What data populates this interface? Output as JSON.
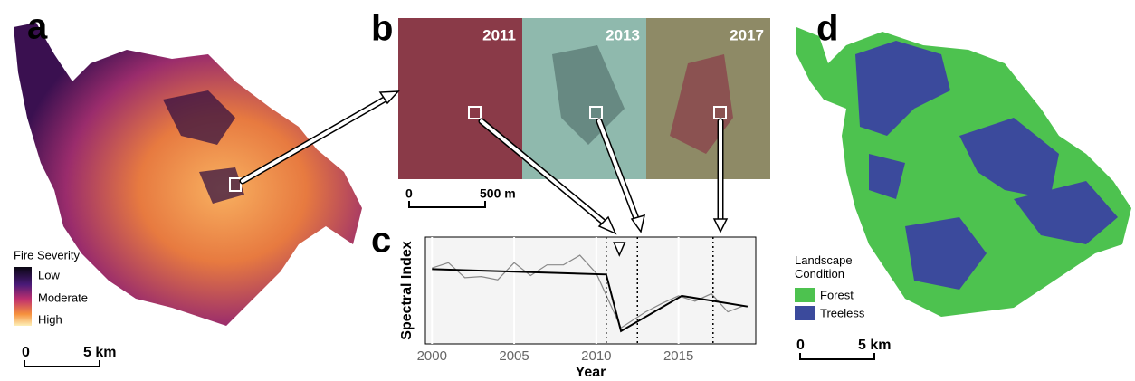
{
  "panels": {
    "a": {
      "label": "a",
      "legend_title": "Fire Severity",
      "legend_items": [
        "Low",
        "Moderate",
        "High"
      ],
      "scale_bar": [
        "0",
        "5 km"
      ]
    },
    "b": {
      "label": "b",
      "years": [
        "2011",
        "2013",
        "2017"
      ],
      "scale_bar": [
        "0",
        "500 m"
      ]
    },
    "d": {
      "label": "d",
      "legend_title": "Landscape Condition",
      "legend_items": [
        {
          "label": "Forest",
          "color": "#4dc24f"
        },
        {
          "label": "Treeless",
          "color": "#3b4a9c"
        }
      ],
      "scale_bar": [
        "0",
        "5 km"
      ]
    }
  },
  "chart_data": {
    "type": "line",
    "label": "c",
    "x_label": "Year",
    "y_label": "Spectral Index",
    "xlim": [
      1999.6,
      2019.7
    ],
    "xticks": [
      2000,
      2005,
      2010,
      2015
    ],
    "ylim": [
      0,
      1
    ],
    "series": [
      {
        "color": "#888888",
        "x": [
          2000,
          2001,
          2002,
          2003,
          2004,
          2005,
          2006,
          2007,
          2008,
          2009,
          2010,
          2011.5,
          2013,
          2014,
          2015,
          2016,
          2017,
          2018,
          2019
        ],
        "values": [
          0.71,
          0.76,
          0.62,
          0.63,
          0.6,
          0.76,
          0.64,
          0.74,
          0.74,
          0.83,
          0.66,
          0.15,
          0.3,
          0.38,
          0.45,
          0.4,
          0.47,
          0.3,
          0.36
        ]
      },
      {
        "color": "#000000",
        "x": [
          2000,
          2010.6,
          2011.5,
          2015.2,
          2019.2
        ],
        "values": [
          0.7,
          0.65,
          0.12,
          0.45,
          0.35
        ]
      }
    ],
    "events": [
      2010.6,
      2012.5,
      2017.1
    ],
    "marker_x": 2011.4
  }
}
